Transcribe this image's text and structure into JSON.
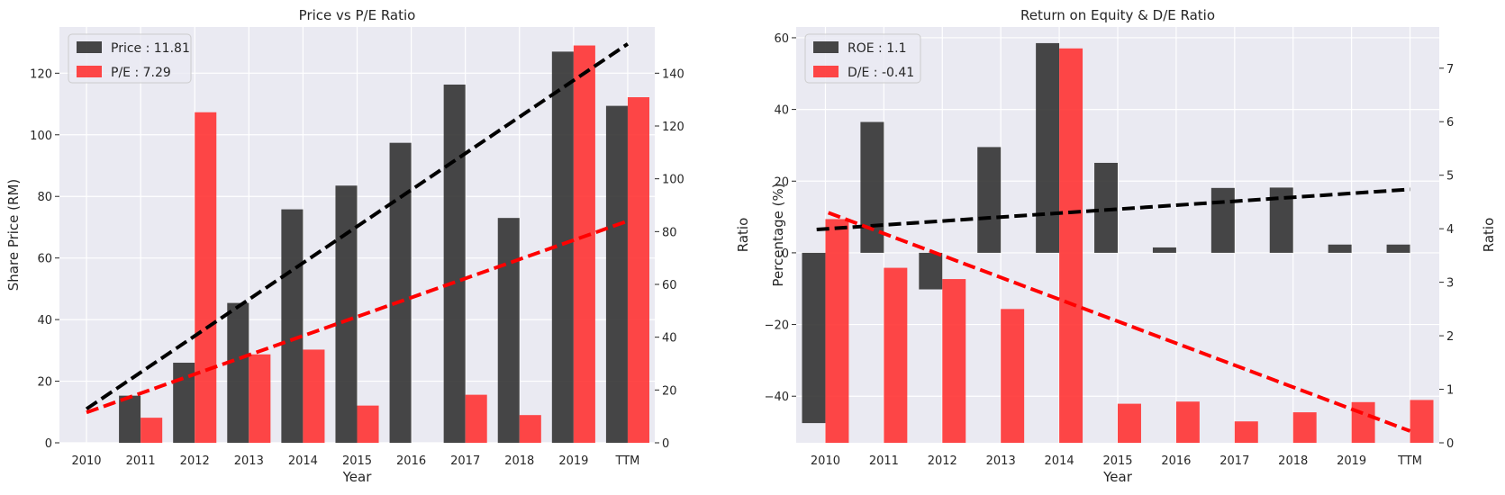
{
  "chart_data": [
    {
      "type": "bar",
      "title": "Price vs P/E Ratio",
      "xlabel": "Year",
      "ylabel": "Share Price (RM)",
      "y2label": "Ratio",
      "categories": [
        "2010",
        "2011",
        "2012",
        "2013",
        "2014",
        "2015",
        "2016",
        "2017",
        "2018",
        "2019",
        "TTM"
      ],
      "ylim": [
        0,
        135
      ],
      "y2lim": [
        0,
        157.5
      ],
      "yticks": [
        0,
        20,
        40,
        60,
        80,
        100,
        120
      ],
      "y2ticks": [
        0,
        20,
        40,
        60,
        80,
        100,
        120,
        140
      ],
      "legend_position": "top-left",
      "grid": true,
      "series": [
        {
          "name": "Price : 11.81",
          "axis": "left",
          "color": "#333333",
          "values": [
            0,
            15.3,
            26,
            45.4,
            75.8,
            83.5,
            97.4,
            116.3,
            73,
            127,
            109.4
          ]
        },
        {
          "name": "P/E : 7.29",
          "axis": "right",
          "color": "#ff3333",
          "values": [
            0,
            9.5,
            125.2,
            33.5,
            35.3,
            14.1,
            0,
            18.2,
            10.5,
            150.5,
            130.9
          ]
        }
      ],
      "trend_lines": [
        {
          "axis": "left",
          "color": "#000000",
          "from": [
            0,
            11
          ],
          "to": [
            10,
            129.5
          ]
        },
        {
          "axis": "right",
          "color": "#ff0000",
          "from": [
            0,
            11.5
          ],
          "to": [
            10,
            84
          ]
        }
      ]
    },
    {
      "type": "bar",
      "title": "Return on Equity & D/E Ratio",
      "xlabel": "Year",
      "ylabel": "Percentage (%)",
      "y2label": "Ratio",
      "categories": [
        "2010",
        "2011",
        "2012",
        "2013",
        "2014",
        "2015",
        "2016",
        "2017",
        "2018",
        "2019",
        "TTM"
      ],
      "ylim": [
        -53,
        63
      ],
      "y2lim": [
        0,
        7.77
      ],
      "yticks": [
        -40,
        -20,
        0,
        20,
        40,
        60
      ],
      "y2ticks": [
        0,
        1,
        2,
        3,
        4,
        5,
        6,
        7
      ],
      "legend_position": "top-left",
      "grid": true,
      "series": [
        {
          "name": "ROE : 1.1",
          "axis": "left",
          "color": "#333333",
          "values": [
            -47.5,
            36.5,
            -10.2,
            29.5,
            58.5,
            25.1,
            1.5,
            18.1,
            18.2,
            2.3,
            2.3
          ]
        },
        {
          "name": "D/E : -0.41",
          "axis": "right",
          "color": "#ff3333",
          "values": [
            4.18,
            3.27,
            3.06,
            2.5,
            7.37,
            0.73,
            0.77,
            0.4,
            0.57,
            0.76,
            0.8
          ]
        }
      ],
      "trend_lines": [
        {
          "axis": "left",
          "color": "#000000",
          "from": [
            -0.15,
            6.5
          ],
          "to": [
            10,
            17.7
          ]
        },
        {
          "axis": "right",
          "color": "#ff0000",
          "from": [
            0.05,
            4.3
          ],
          "to": [
            10,
            0.22
          ]
        }
      ]
    }
  ]
}
